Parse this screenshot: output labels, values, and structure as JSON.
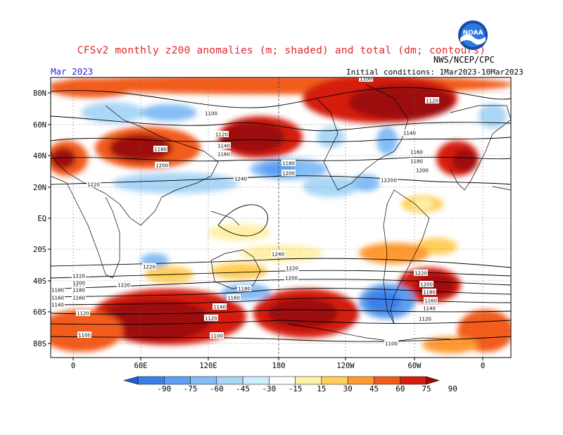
{
  "title": "CFSv2 monthly z200 anomalies (m; shaded) and total (dm; contours)",
  "month": "Mar 2023",
  "initial_conditions": "Initial conditions: 1Mar2023-10Mar2023",
  "agency": "NWS/NCEP/CPC",
  "logo_text": "NOAA",
  "lat_labels": [
    "80N",
    "60N",
    "40N",
    "20N",
    "EQ",
    "20S",
    "40S",
    "60S",
    "80S"
  ],
  "lon_labels": [
    "0",
    "60E",
    "120E",
    "180",
    "120W",
    "60W",
    "0"
  ],
  "colorbar": {
    "tick_labels": [
      "-90",
      "-75",
      "-60",
      "-45",
      "-30",
      "-15",
      "15",
      "30",
      "45",
      "60",
      "75",
      "90"
    ],
    "colors": [
      "#1e5fd6",
      "#3a7fe8",
      "#5d9ff0",
      "#85bdf5",
      "#aad7f7",
      "#cdeefb",
      "#ffffff",
      "#fff0a8",
      "#ffcf5a",
      "#ff9a33",
      "#f25c1a",
      "#d51e0e",
      "#9e0b07"
    ]
  },
  "contour_labels": [
    {
      "text": "1100"
    },
    {
      "text": "1120"
    },
    {
      "text": "1140"
    },
    {
      "text": "1160"
    },
    {
      "text": "1180"
    },
    {
      "text": "1200"
    },
    {
      "text": "1220"
    },
    {
      "text": "1240"
    },
    {
      "text": "1180"
    },
    {
      "text": "1200"
    },
    {
      "text": "1220"
    },
    {
      "text": "1220"
    },
    {
      "text": "1120"
    },
    {
      "text": "1140"
    },
    {
      "text": "1160"
    },
    {
      "text": "1180"
    },
    {
      "text": "1200"
    },
    {
      "text": "1220"
    },
    {
      "text": "1240"
    },
    {
      "text": "1220"
    },
    {
      "text": "1200"
    },
    {
      "text": "1220"
    },
    {
      "text": "1200"
    },
    {
      "text": "1180"
    },
    {
      "text": "1160"
    },
    {
      "text": "1140"
    },
    {
      "text": "1120"
    },
    {
      "text": "1100"
    },
    {
      "text": "1180"
    },
    {
      "text": "1160"
    },
    {
      "text": "1140"
    },
    {
      "text": "1120"
    },
    {
      "text": "1100"
    },
    {
      "text": "1220"
    },
    {
      "text": "1200"
    },
    {
      "text": "1180"
    },
    {
      "text": "1160"
    },
    {
      "text": "1140"
    },
    {
      "text": "1120"
    },
    {
      "text": "1100"
    },
    {
      "text": "1160"
    },
    {
      "text": "1180"
    },
    {
      "text": "1200"
    },
    {
      "text": "1220"
    },
    {
      "text": "1100"
    }
  ]
}
